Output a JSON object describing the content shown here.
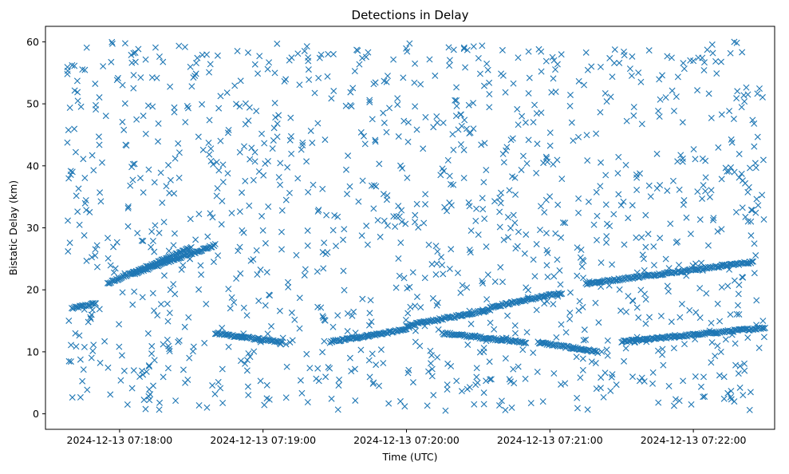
{
  "chart_data": {
    "type": "scatter",
    "title": "Detections in Delay",
    "xlabel": "Time (UTC)",
    "ylabel": "Bistatic Delay (km)",
    "marker": "x",
    "color": "#1f77b4",
    "grid": false,
    "legend": "none",
    "xlim": [
      "2024-12-13 07:17:29",
      "2024-12-13 07:22:34"
    ],
    "ylim": [
      -2.5,
      62.5
    ],
    "x_ticks": [
      "2024-12-13 07:18:00",
      "2024-12-13 07:19:00",
      "2024-12-13 07:20:00",
      "2024-12-13 07:21:00",
      "2024-12-13 07:22:00"
    ],
    "y_ticks": [
      "0",
      "10",
      "20",
      "30",
      "40",
      "50",
      "60"
    ],
    "track_segments": [
      {
        "start": [
          "2024-12-13 07:17:40",
          17.0
        ],
        "end": [
          "2024-12-13 07:17:50",
          17.8
        ]
      },
      {
        "start": [
          "2024-12-13 07:17:55",
          21.0
        ],
        "end": [
          "2024-12-13 07:18:30",
          26.8
        ]
      },
      {
        "start": [
          "2024-12-13 07:18:05",
          22.5
        ],
        "end": [
          "2024-12-13 07:18:40",
          27.2
        ]
      },
      {
        "start": [
          "2024-12-13 07:18:40",
          13.0
        ],
        "end": [
          "2024-12-13 07:19:08",
          11.5
        ]
      },
      {
        "start": [
          "2024-12-13 07:19:28",
          11.6
        ],
        "end": [
          "2024-12-13 07:20:00",
          13.6
        ]
      },
      {
        "start": [
          "2024-12-13 07:20:00",
          14.2
        ],
        "end": [
          "2024-12-13 07:20:35",
          16.8
        ]
      },
      {
        "start": [
          "2024-12-13 07:20:35",
          17.2
        ],
        "end": [
          "2024-12-13 07:21:05",
          19.5
        ]
      },
      {
        "start": [
          "2024-12-13 07:20:15",
          13.0
        ],
        "end": [
          "2024-12-13 07:20:50",
          11.5
        ]
      },
      {
        "start": [
          "2024-12-13 07:20:55",
          11.5
        ],
        "end": [
          "2024-12-13 07:21:20",
          10.0
        ]
      },
      {
        "start": [
          "2024-12-13 07:21:30",
          11.6
        ],
        "end": [
          "2024-12-13 07:22:30",
          13.9
        ]
      },
      {
        "start": [
          "2024-12-13 07:21:15",
          21.0
        ],
        "end": [
          "2024-12-13 07:22:25",
          24.5
        ]
      }
    ],
    "scatter_clusters": [
      {
        "x_range": [
          "2024-12-13 07:17:38",
          "2024-12-13 07:19:15"
        ],
        "y_range": [
          0.5,
          60
        ]
      },
      {
        "x_range": [
          "2024-12-13 07:19:15",
          "2024-12-13 07:20:45"
        ],
        "y_range": [
          0.5,
          60
        ]
      },
      {
        "x_range": [
          "2024-12-13 07:20:45",
          "2024-12-13 07:22:30"
        ],
        "y_range": [
          0.5,
          60
        ]
      }
    ]
  }
}
